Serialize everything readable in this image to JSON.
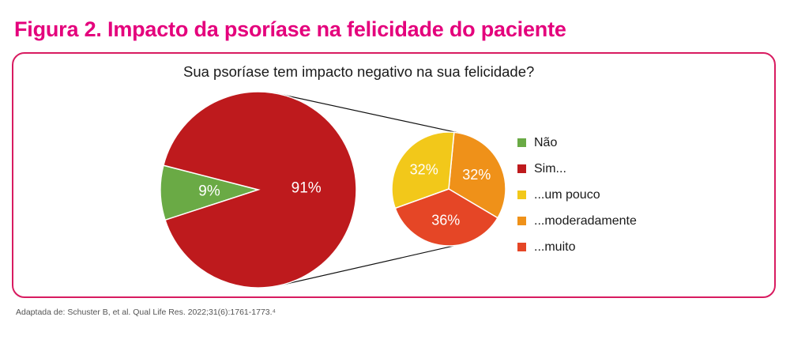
{
  "header": {
    "title": "Figura 2. Impacto da psoríase na felicidade do paciente"
  },
  "colors": {
    "accent": "#e4007c",
    "frame": "#d81b60",
    "nao": "#6aaa45",
    "sim": "#be1a1d",
    "um_pouco": "#f2c81a",
    "moderadamente": "#ef9119",
    "muito": "#e54626"
  },
  "chart_data": [
    {
      "type": "pie",
      "title": "Sua psoríase tem impacto negativo na sua felicidade?",
      "categories": [
        "Não",
        "Sim..."
      ],
      "values": [
        9,
        91
      ],
      "labels": [
        "9%",
        "91%"
      ]
    },
    {
      "type": "pie",
      "title": "Sim...",
      "categories": [
        "...um pouco",
        "...moderadamente",
        "...muito"
      ],
      "values": [
        32,
        32,
        36
      ],
      "labels": [
        "32%",
        "32%",
        "36%"
      ]
    }
  ],
  "legend": [
    {
      "label": "Não",
      "color": "#6aaa45"
    },
    {
      "label": "Sim...",
      "color": "#be1a1d"
    },
    {
      "label": "...um pouco",
      "color": "#f2c81a"
    },
    {
      "label": "...moderadamente",
      "color": "#ef9119"
    },
    {
      "label": "...muito",
      "color": "#e54626"
    }
  ],
  "footer": {
    "source": "Adaptada de: Schuster B, et al. Qual Life Res. 2022;31(6):1761-1773.⁴"
  }
}
